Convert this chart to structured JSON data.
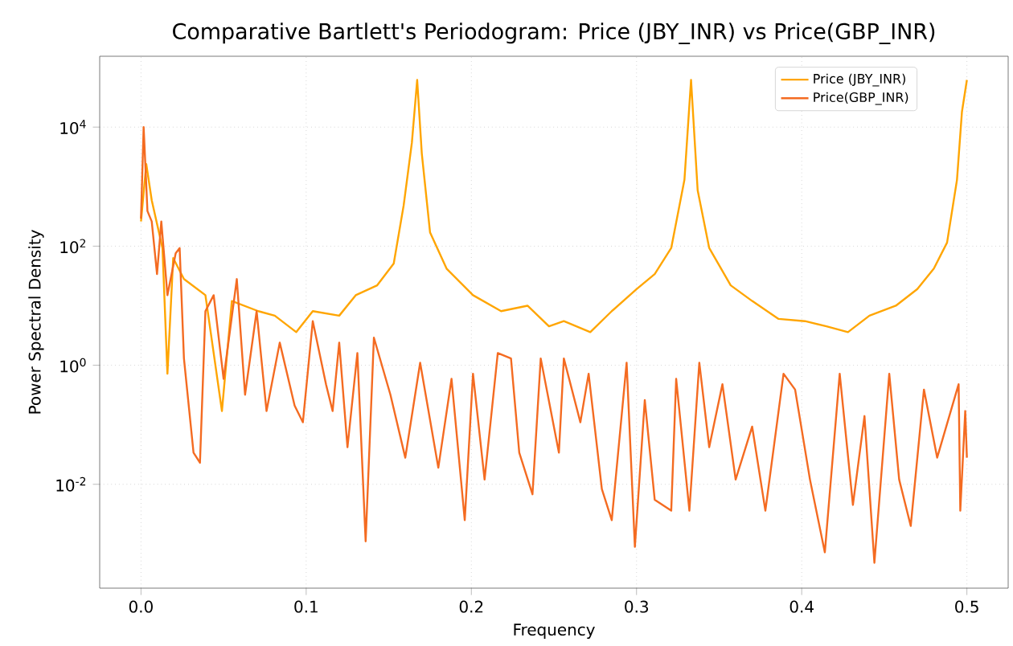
{
  "chart_data": {
    "type": "line",
    "title": "Comparative Bartlett's Periodogram: Price (JBY_INR) vs Price(GBP_INR)",
    "xlabel": "Frequency",
    "ylabel": "Power Spectral Density",
    "log": "y",
    "grid": true,
    "legend": "top right",
    "xlim": [
      -0.025,
      0.525
    ],
    "xticks": [
      {
        "value": 0,
        "label": "0.0"
      },
      0.1,
      0.2,
      0.3,
      0.4,
      0.5
    ],
    "ylim": [
      0.00018,
      155000
    ],
    "yticks": [
      {
        "value": 0.01,
        "label": "10$^{-2}$"
      },
      {
        "value": 1,
        "label": "10$^{0}$"
      },
      {
        "value": 100,
        "label": "10$^{2}$"
      },
      {
        "value": 10000,
        "label": "10$^{4}$"
      }
    ],
    "series": [
      {
        "name": "Price (JBY_INR)",
        "color": "#ffa500",
        "x": [
          0,
          0.0032,
          0.0065,
          0.013,
          0.016,
          0.0195,
          0.026,
          0.039,
          0.049,
          0.055,
          0.071,
          0.081,
          0.094,
          0.104,
          0.12,
          0.13,
          0.143,
          0.153,
          0.159,
          0.164,
          0.1672,
          0.17,
          0.175,
          0.185,
          0.201,
          0.218,
          0.234,
          0.247,
          0.256,
          0.272,
          0.285,
          0.3,
          0.311,
          0.321,
          0.329,
          0.333,
          0.337,
          0.344,
          0.357,
          0.37,
          0.386,
          0.402,
          0.415,
          0.428,
          0.441,
          0.457,
          0.47,
          0.48,
          0.488,
          0.494,
          0.497,
          0.5
        ],
        "values": [
          260,
          2400,
          590,
          93,
          0.72,
          63,
          28,
          15,
          0.17,
          12,
          8.1,
          6.8,
          3.6,
          8.1,
          6.8,
          15,
          22,
          51,
          480,
          5500,
          62000,
          3600,
          170,
          42,
          15,
          8.1,
          10,
          4.5,
          5.5,
          3.6,
          8.1,
          19,
          34,
          93,
          1300,
          62000,
          870,
          93,
          22,
          12,
          6.0,
          5.5,
          4.5,
          3.6,
          6.8,
          10,
          19,
          42,
          115,
          1300,
          18000,
          62000
        ]
      },
      {
        "name": "Price(GBP_INR)",
        "color": "#f46b21",
        "x": [
          0,
          0.0016,
          0.0039,
          0.0065,
          0.0097,
          0.0123,
          0.016,
          0.021,
          0.0234,
          0.026,
          0.0318,
          0.0357,
          0.039,
          0.044,
          0.05,
          0.058,
          0.063,
          0.07,
          0.076,
          0.084,
          0.093,
          0.098,
          0.104,
          0.112,
          0.116,
          0.12,
          0.125,
          0.131,
          0.136,
          0.141,
          0.151,
          0.16,
          0.169,
          0.18,
          0.188,
          0.196,
          0.201,
          0.208,
          0.216,
          0.224,
          0.229,
          0.237,
          0.242,
          0.253,
          0.256,
          0.266,
          0.271,
          0.279,
          0.285,
          0.294,
          0.299,
          0.305,
          0.311,
          0.321,
          0.324,
          0.332,
          0.338,
          0.344,
          0.352,
          0.36,
          0.37,
          0.378,
          0.389,
          0.396,
          0.405,
          0.414,
          0.423,
          0.431,
          0.438,
          0.444,
          0.453,
          0.459,
          0.466,
          0.474,
          0.482,
          0.495,
          0.496,
          0.499,
          0.5
        ],
        "values": [
          290,
          10000,
          390,
          260,
          34,
          260,
          15,
          76,
          93,
          1.3,
          0.034,
          0.023,
          8.1,
          15,
          0.59,
          28,
          0.32,
          8.1,
          0.17,
          2.4,
          0.21,
          0.11,
          5.5,
          0.48,
          0.17,
          2.4,
          0.042,
          1.6,
          0.0011,
          2.9,
          0.32,
          0.028,
          1.1,
          0.019,
          0.59,
          0.0025,
          0.72,
          0.012,
          1.6,
          1.3,
          0.034,
          0.0068,
          1.3,
          0.034,
          1.3,
          0.11,
          0.72,
          0.0083,
          0.0025,
          1.1,
          0.00089,
          0.26,
          0.0055,
          0.0036,
          0.59,
          0.0036,
          1.1,
          0.042,
          0.48,
          0.012,
          0.093,
          0.0036,
          0.72,
          0.39,
          0.012,
          0.00072,
          0.72,
          0.0045,
          0.14,
          0.00048,
          0.72,
          0.012,
          0.002,
          0.39,
          0.028,
          0.48,
          0.0036,
          0.17,
          0.028
        ]
      }
    ]
  }
}
